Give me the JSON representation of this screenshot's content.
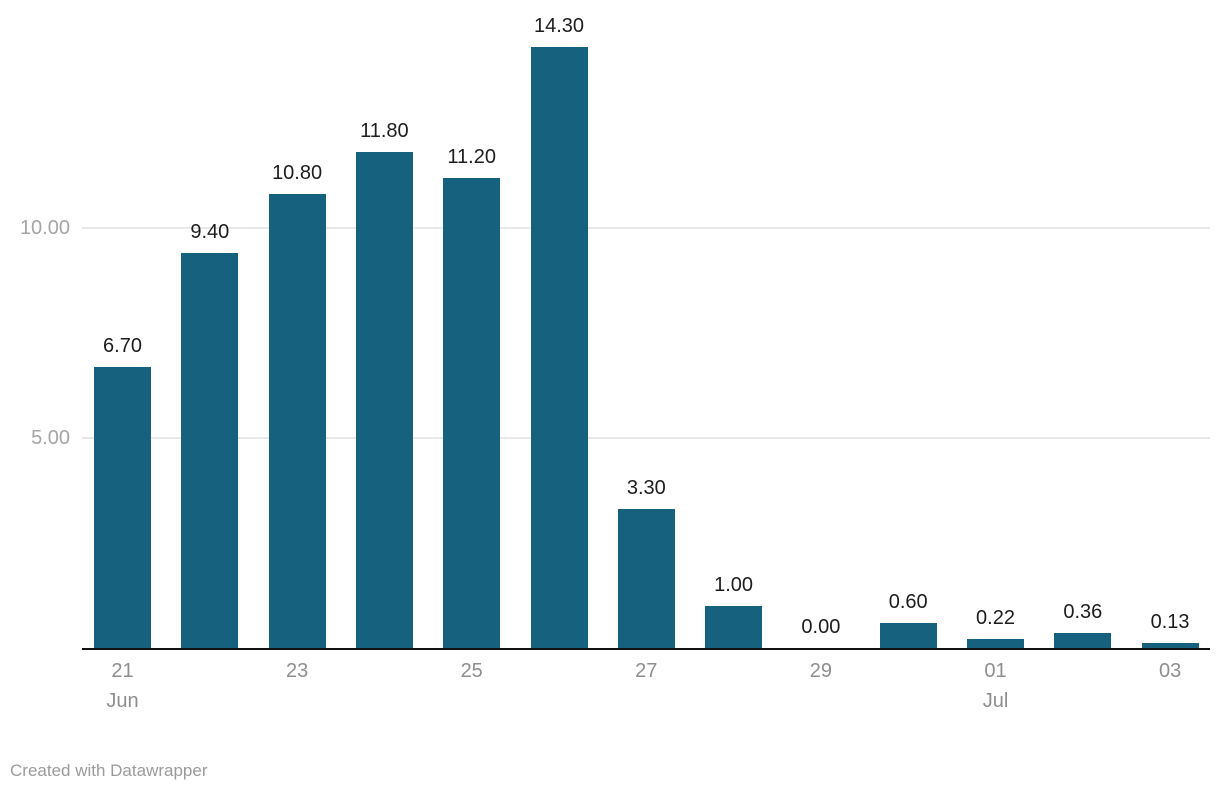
{
  "chart": {
    "footer": "Created with Datawrapper",
    "colors": {
      "bar": "#15617e",
      "grid": "#e8e8e8",
      "axis": "#111111",
      "value_label": "#1d1d1d",
      "x_tick": "#8e8e8e",
      "y_tick": "#a5a5a5",
      "footer": "#9b9b9b",
      "background": "#ffffff"
    }
  },
  "chart_data": {
    "type": "bar",
    "title": "",
    "xlabel": "",
    "ylabel": "",
    "values": [
      6.7,
      9.4,
      10.8,
      11.8,
      11.2,
      14.3,
      3.3,
      1.0,
      0.0,
      0.6,
      0.22,
      0.36,
      0.13
    ],
    "value_labels": [
      "6.70",
      "9.40",
      "10.80",
      "11.80",
      "11.20",
      "14.30",
      "3.30",
      "1.00",
      "0.00",
      "0.60",
      "0.22",
      "0.36",
      "0.13"
    ],
    "x_ticks": [
      {
        "index": 0,
        "label": "21",
        "sub": "Jun"
      },
      {
        "index": 2,
        "label": "23",
        "sub": ""
      },
      {
        "index": 4,
        "label": "25",
        "sub": ""
      },
      {
        "index": 6,
        "label": "27",
        "sub": ""
      },
      {
        "index": 8,
        "label": "29",
        "sub": ""
      },
      {
        "index": 10,
        "label": "01",
        "sub": "Jul"
      },
      {
        "index": 12,
        "label": "03",
        "sub": ""
      }
    ],
    "y_ticks": [
      {
        "value": 5,
        "label": "5.00"
      },
      {
        "value": 10,
        "label": "10.00"
      }
    ],
    "ylim": [
      0,
      15.2
    ],
    "grid": true,
    "legend": "none"
  }
}
